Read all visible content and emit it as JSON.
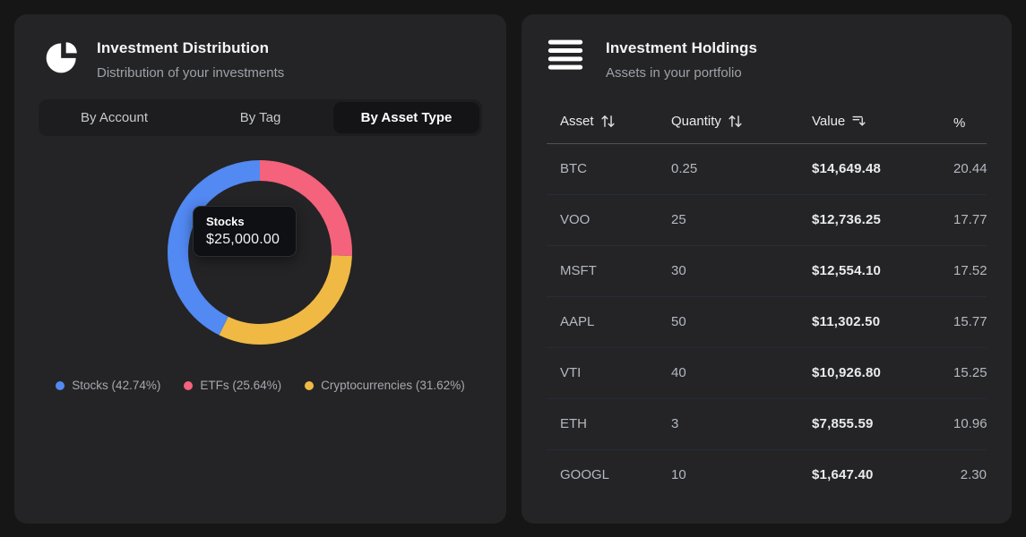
{
  "page": {
    "background": "#161617",
    "card_background": "#242426"
  },
  "distribution_card": {
    "title": "Investment Distribution",
    "subtitle": "Distribution of your investments",
    "header_icon": "pie-chart-icon",
    "tabs": [
      {
        "label": "By Account",
        "active": false
      },
      {
        "label": "By Tag",
        "active": false
      },
      {
        "label": "By Asset Type",
        "active": true
      }
    ],
    "tooltip": {
      "label": "Stocks",
      "value": "$25,000.00"
    },
    "legend": [
      {
        "label": "Stocks (42.74%)",
        "color": "#5289f2"
      },
      {
        "label": "ETFs (25.64%)",
        "color": "#f4627b"
      },
      {
        "label": "Cryptocurrencies (31.62%)",
        "color": "#efb944"
      }
    ]
  },
  "holdings_card": {
    "title": "Investment Holdings",
    "subtitle": "Assets in your portfolio",
    "header_icon": "rows-icon",
    "table": {
      "columns": [
        {
          "label": "Asset",
          "sort_icon": "arrows-up-down-icon"
        },
        {
          "label": "Quantity",
          "sort_icon": "arrows-up-down-icon"
        },
        {
          "label": "Value",
          "sort_icon": "bars-arrow-down-icon"
        },
        {
          "label": "%",
          "sort_icon": null
        }
      ],
      "rows": [
        {
          "asset": "BTC",
          "quantity": "0.25",
          "value": "$14,649.48",
          "percent": "20.44"
        },
        {
          "asset": "VOO",
          "quantity": "25",
          "value": "$12,736.25",
          "percent": "17.77"
        },
        {
          "asset": "MSFT",
          "quantity": "30",
          "value": "$12,554.10",
          "percent": "17.52"
        },
        {
          "asset": "AAPL",
          "quantity": "50",
          "value": "$11,302.50",
          "percent": "15.77"
        },
        {
          "asset": "VTI",
          "quantity": "40",
          "value": "$10,926.80",
          "percent": "15.25"
        },
        {
          "asset": "ETH",
          "quantity": "3",
          "value": "$7,855.59",
          "percent": "10.96"
        },
        {
          "asset": "GOOGL",
          "quantity": "10",
          "value": "$1,647.40",
          "percent": "2.30"
        }
      ]
    }
  },
  "chart_data": {
    "type": "pie",
    "donut": true,
    "title": "Investment Distribution",
    "legend_position": "bottom",
    "segments_clockwise_from_top": [
      {
        "label": "ETFs",
        "percent": 25.64,
        "color": "#f4627b"
      },
      {
        "label": "Cryptocurrencies",
        "percent": 31.62,
        "color": "#efb944"
      },
      {
        "label": "Stocks",
        "percent": 42.74,
        "color": "#5289f2",
        "value_label": "$25,000.00"
      }
    ]
  }
}
